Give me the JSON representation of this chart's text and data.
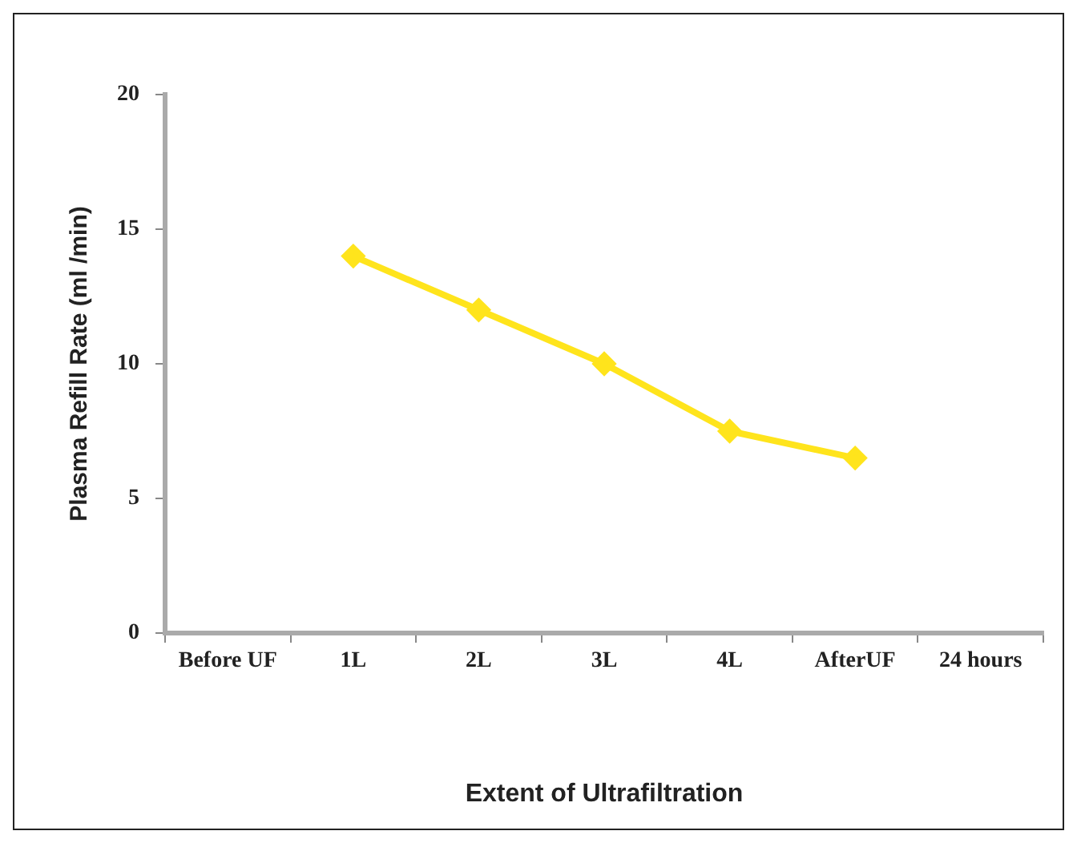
{
  "chart_data": {
    "type": "line",
    "xlabel": "Extent of Ultrafiltration",
    "ylabel": "Plasma Refill Rate (ml /min)",
    "categories": [
      "Before UF",
      "1L",
      "2L",
      "3L",
      "4L",
      "AfterUF",
      "24 hours"
    ],
    "series": [
      {
        "color": "#ffe41c",
        "values": [
          null,
          14,
          12,
          10,
          7.5,
          6.5,
          null
        ]
      }
    ],
    "ylim": [
      0,
      20
    ],
    "yticks": [
      0,
      5,
      10,
      15,
      20
    ],
    "grid": false,
    "legend": false,
    "marker": "diamond",
    "line_style": "solid"
  }
}
